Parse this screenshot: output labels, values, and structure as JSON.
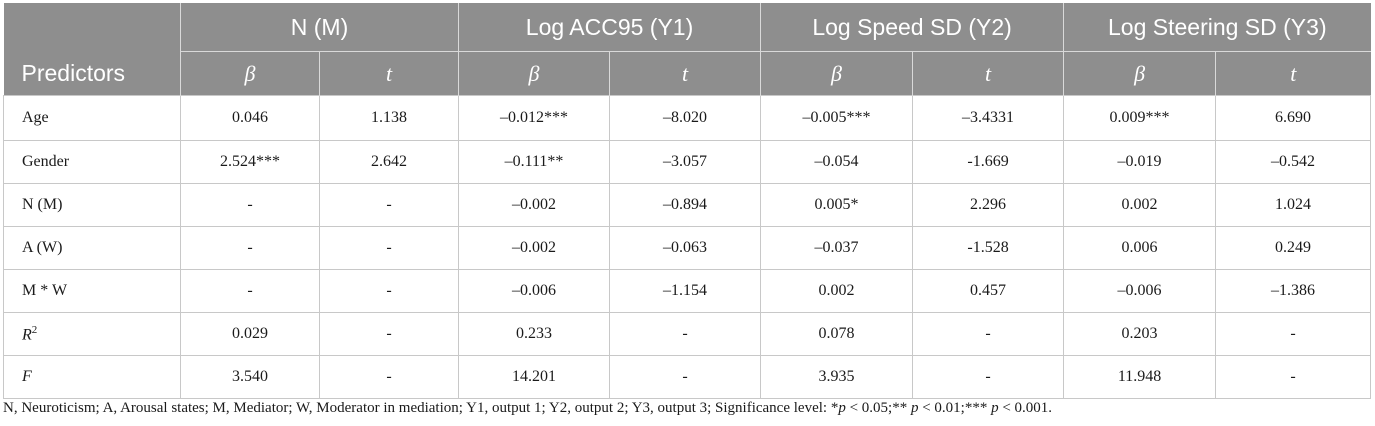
{
  "table": {
    "predictors_label": "Predictors",
    "groups": [
      "N (M)",
      "Log ACC95 (Y1)",
      "Log Speed SD (Y2)",
      "Log Steering SD (Y3)"
    ],
    "subheaders": [
      "β",
      "t",
      "β",
      "t",
      "β",
      "t",
      "β",
      "t"
    ],
    "rows": [
      {
        "label": "Age",
        "cells": [
          "0.046",
          "1.138",
          "–0.012***",
          "–8.020",
          "–0.005***",
          "–3.4331",
          "0.009***",
          "6.690"
        ]
      },
      {
        "label": "Gender",
        "cells": [
          "2.524***",
          "2.642",
          "–0.111**",
          "–3.057",
          "–0.054",
          "-1.669",
          "–0.019",
          "–0.542"
        ]
      },
      {
        "label": "N (M)",
        "cells": [
          "-",
          "-",
          "–0.002",
          "–0.894",
          "0.005*",
          "2.296",
          "0.002",
          "1.024"
        ]
      },
      {
        "label": "A (W)",
        "cells": [
          "-",
          "-",
          "–0.002",
          "–0.063",
          "–0.037",
          "-1.528",
          "0.006",
          "0.249"
        ]
      },
      {
        "label": "M * W",
        "cells": [
          "-",
          "-",
          "–0.006",
          "–1.154",
          "0.002",
          "0.457",
          "–0.006",
          "–1.386"
        ]
      },
      {
        "label_main": "R",
        "label_sup": "2",
        "cells": [
          "0.029",
          "-",
          "0.233",
          "-",
          "0.078",
          "-",
          "0.203",
          "-"
        ]
      },
      {
        "label_main": "F",
        "cells": [
          "3.540",
          "-",
          "14.201",
          "-",
          "3.935",
          "-",
          "11.948",
          "-"
        ]
      }
    ]
  },
  "footnote": {
    "text_1": "N, Neuroticism; A, Arousal states; M, Mediator; W, Moderator in mediation; Y1, output 1; Y2, output 2; Y3, output 3; Significance level: *",
    "p1": "p",
    "t1": " < 0.05;** ",
    "p2": "p",
    "t2": " < 0.01;*** ",
    "p3": "p",
    "t3": " < 0.001."
  },
  "colors": {
    "header_bg": "#8e8e8e",
    "header_text": "#ffffff",
    "grid": "#c8c8c8"
  }
}
